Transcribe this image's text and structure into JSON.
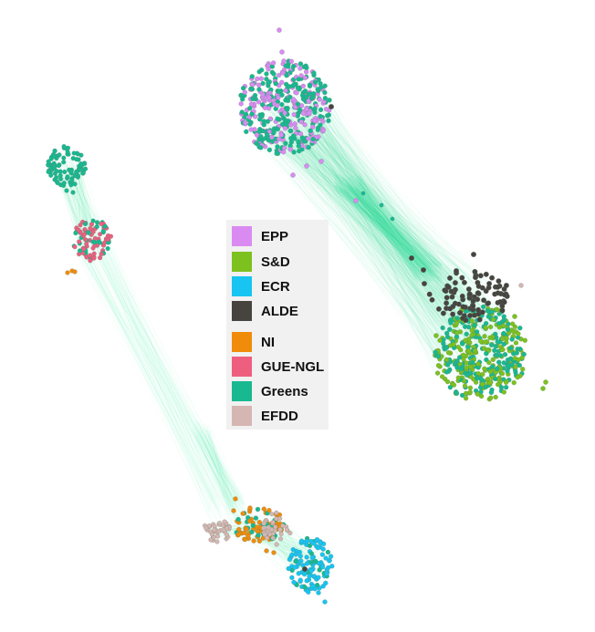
{
  "diagram": {
    "type": "network",
    "legend": [
      {
        "label": "EPP",
        "color": "#DA8BF2"
      },
      {
        "label": "S&D",
        "color": "#7DC11F"
      },
      {
        "label": "ECR",
        "color": "#17C4F2"
      },
      {
        "label": "ALDE",
        "color": "#474440"
      },
      {
        "label": "NI",
        "color": "#F08C0A"
      },
      {
        "label": "GUE-NGL",
        "color": "#EE5F7F"
      },
      {
        "label": "Greens",
        "color": "#18B990"
      },
      {
        "label": "EFDD",
        "color": "#D6B6B2"
      }
    ],
    "edge_color": "#2EE29A"
  }
}
